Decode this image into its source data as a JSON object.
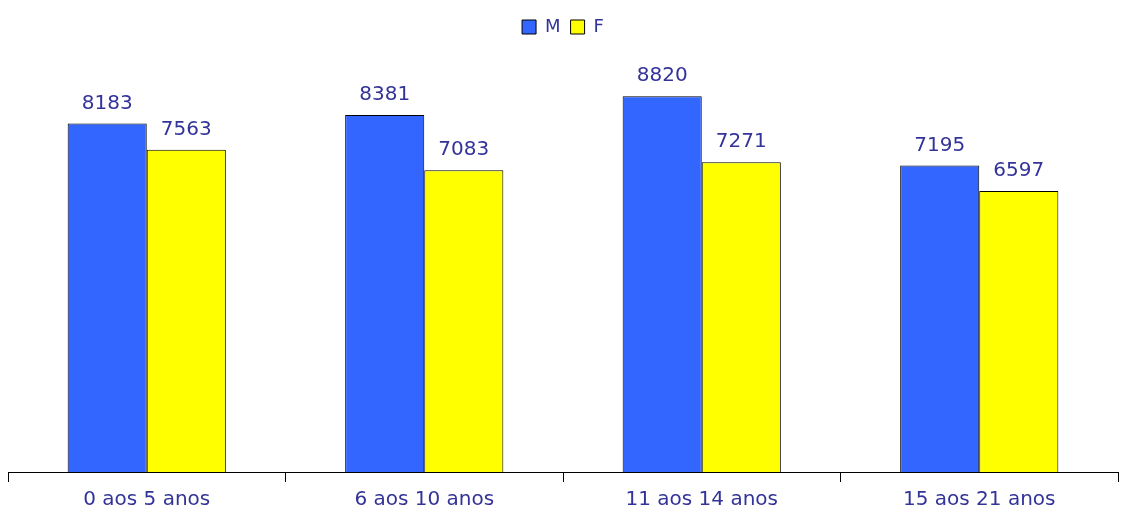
{
  "chart_data": {
    "type": "bar",
    "categories": [
      "0 aos 5 anos",
      "6 aos 10 anos",
      "11 aos 14 anos",
      "15 aos 21 anos"
    ],
    "series": [
      {
        "name": "M",
        "color": "#3366ff",
        "values": [
          8183,
          8381,
          8820,
          7195
        ]
      },
      {
        "name": "F",
        "color": "#ffff00",
        "values": [
          7563,
          7083,
          7271,
          6597
        ]
      }
    ],
    "data_labels": true,
    "legend": "top",
    "grid": false
  }
}
